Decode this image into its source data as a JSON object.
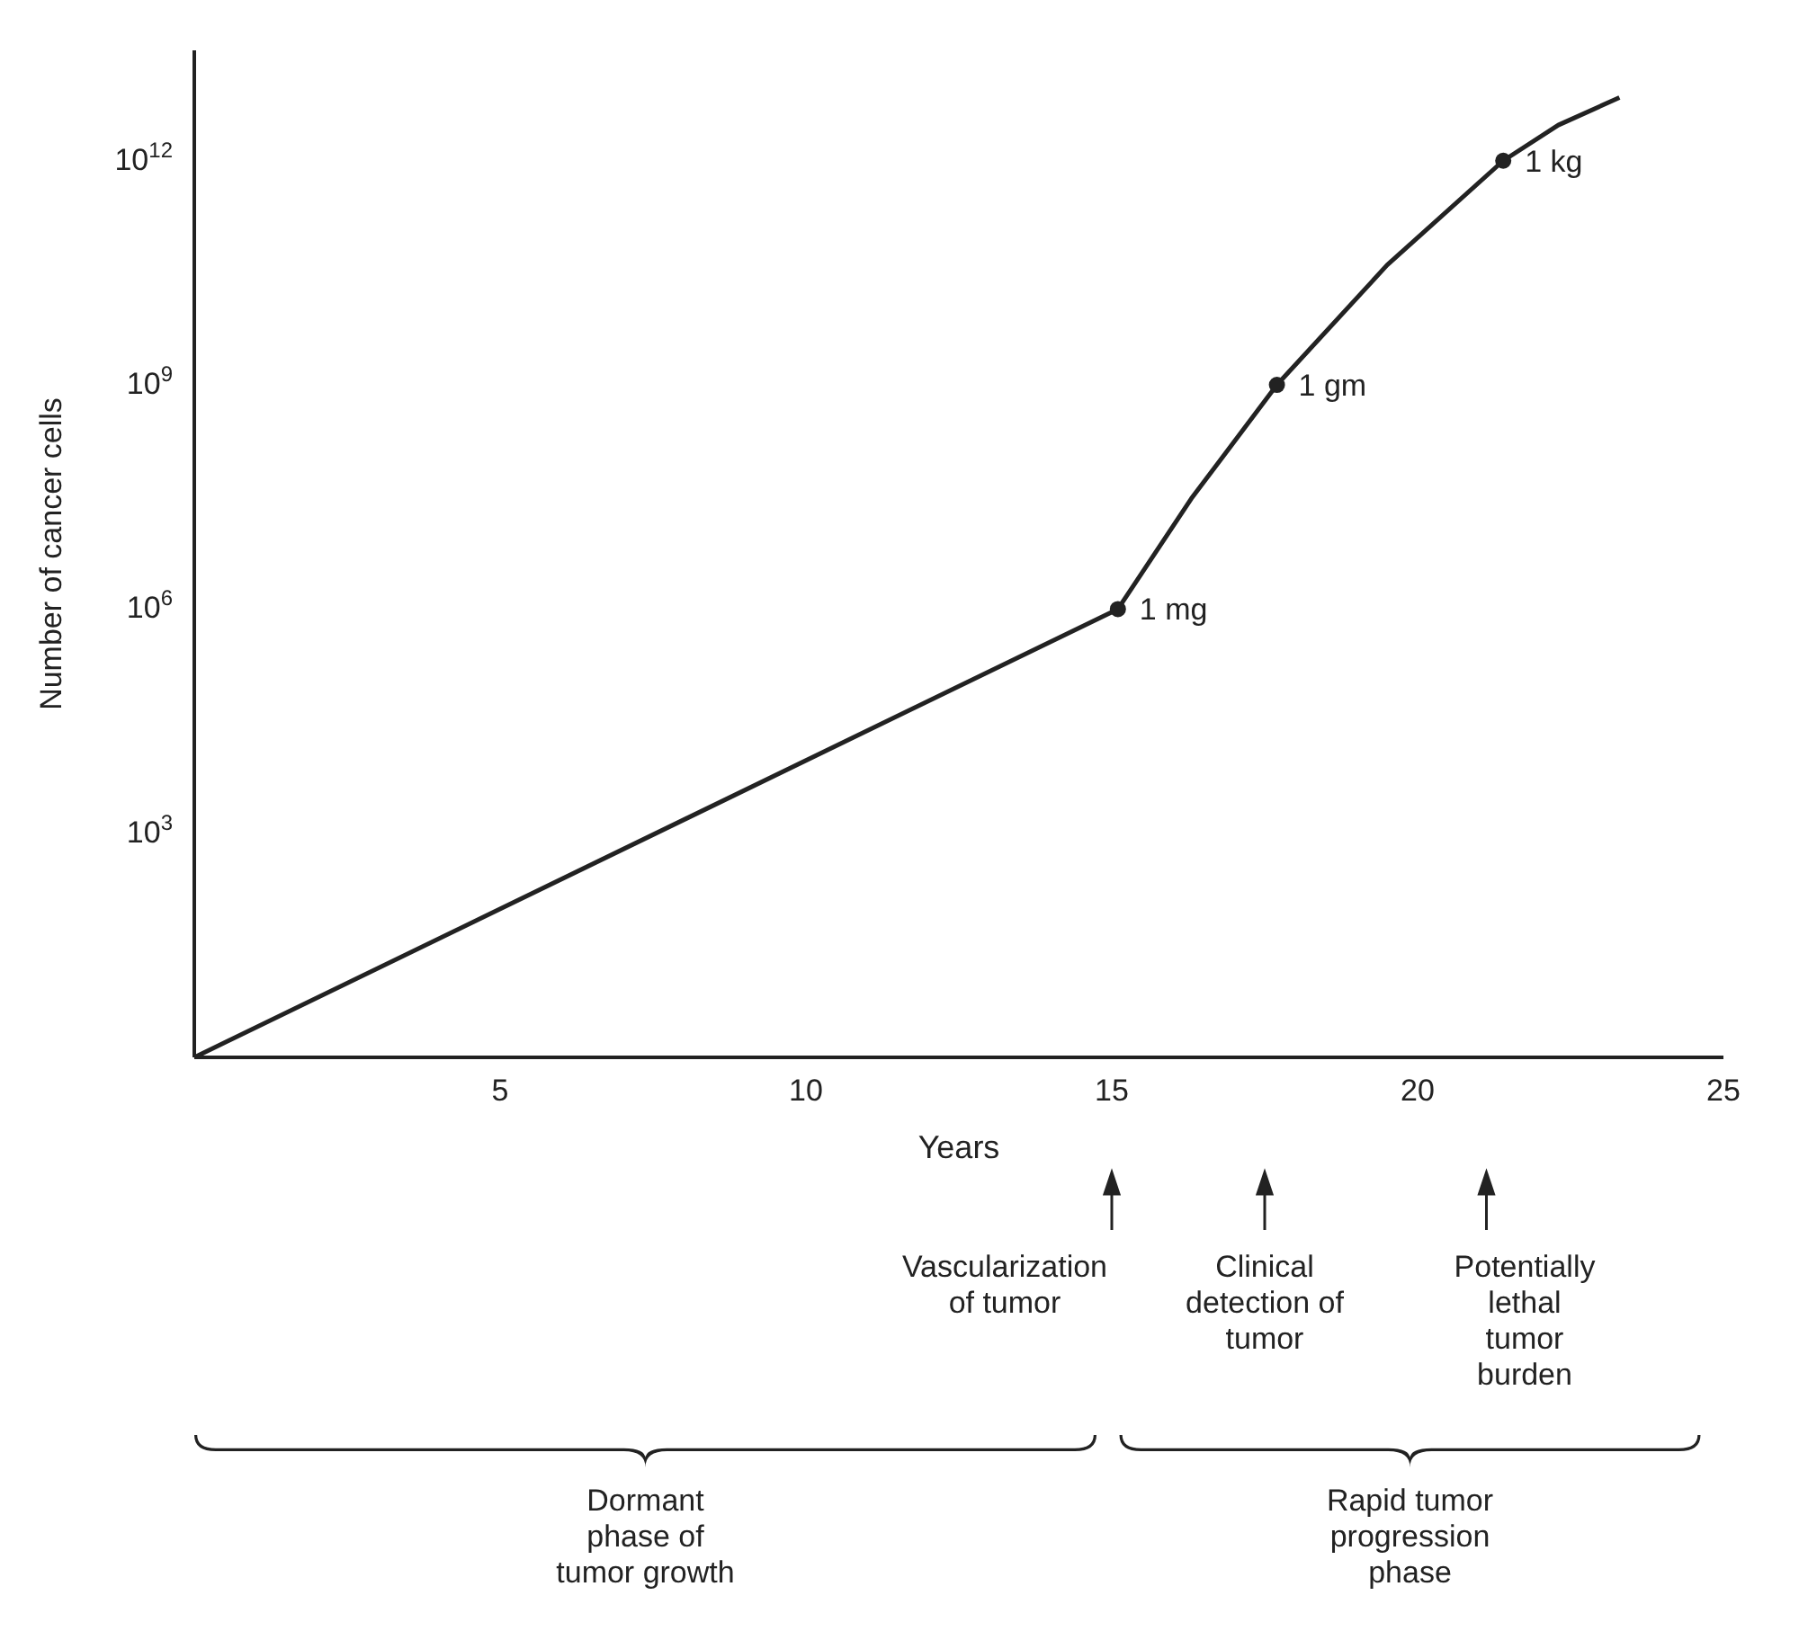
{
  "chart_data": {
    "type": "line",
    "xlabel": "Years",
    "ylabel": "Number of cancer cells",
    "log": "y",
    "xlim": [
      0,
      25
    ],
    "xticks": [
      5,
      10,
      15,
      20,
      25
    ],
    "ylim": [
      1,
      30000000000000
    ],
    "yticks": [
      {
        "value": 1000,
        "label": "10$^{3}$"
      },
      {
        "value": 1000000,
        "label": "10$^{6}$"
      },
      {
        "value": 1000000000,
        "label": "10$^{9}$"
      },
      {
        "value": 1000000000000,
        "label": "10$^{12}$"
      }
    ],
    "series": [
      {
        "color": "#222222",
        "x": [
          0,
          15.1,
          16.3,
          17.7,
          19.5,
          21.4,
          22.3,
          23.3
        ],
        "values": [
          1,
          1000000,
          30000000,
          1000000000,
          40000000000,
          1000000000000,
          3000000000000,
          7000000000000
        ]
      },
      {
        "type": "scatter",
        "color": "#222222",
        "x": [
          15.1,
          17.7,
          21.4
        ],
        "values": [
          1000000,
          1000000000,
          1000000000000
        ]
      }
    ],
    "annotations": [
      {
        "text": "1 mg",
        "x": 15.1,
        "y": 1000000
      },
      {
        "text": "1 gm",
        "x": 17.7,
        "y": 1000000000
      },
      {
        "text": "1 kg",
        "x": 21.4,
        "y": 1000000000000
      },
      "Vascularization\nof tumor",
      "Clinical\ndetection of\ntumor",
      "Potentially\nlethal\ntumor\nburden",
      "Dormant\nphase of\ntumor growth",
      "Rapid tumor\nprogression\nphase"
    ]
  }
}
